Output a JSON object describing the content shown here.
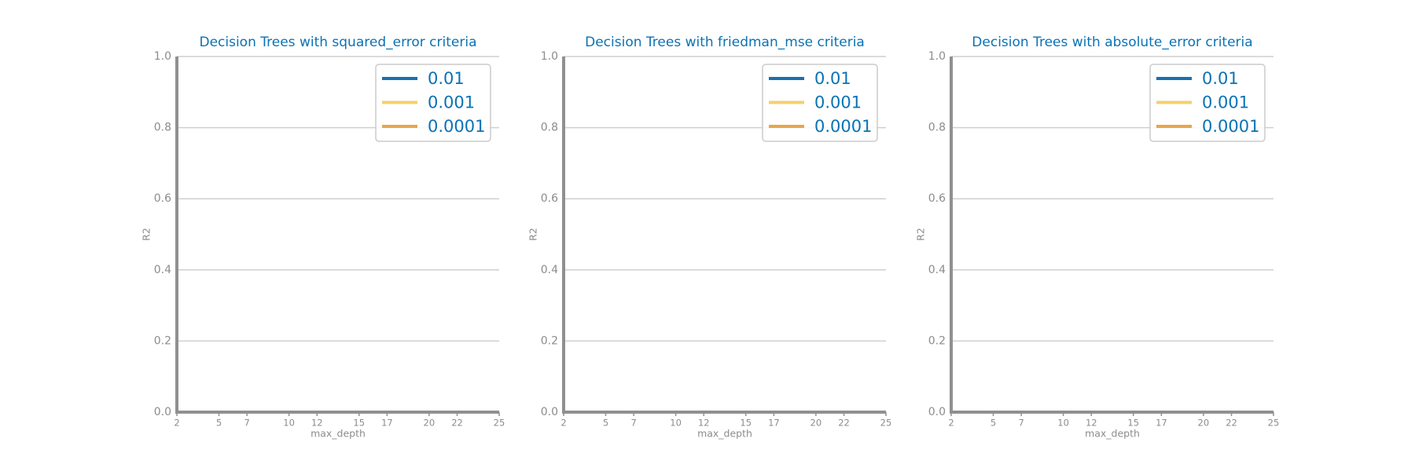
{
  "chart_data": [
    {
      "type": "line",
      "title": "Decision Trees with squared_error criteria",
      "xlabel": "max_depth",
      "ylabel": "R2",
      "x": [
        2,
        5,
        7,
        10,
        12,
        15,
        17,
        20,
        22,
        25
      ],
      "series": [
        {
          "name": "0.01",
          "color": "#1a6faf",
          "values": [
            null,
            null,
            null,
            null,
            null,
            null,
            null,
            null,
            null,
            null
          ]
        },
        {
          "name": "0.001",
          "color": "#f4cf6e",
          "values": [
            null,
            null,
            null,
            null,
            null,
            null,
            null,
            null,
            null,
            null
          ]
        },
        {
          "name": "0.0001",
          "color": "#e8a54b",
          "values": [
            null,
            null,
            null,
            null,
            null,
            null,
            null,
            null,
            null,
            null
          ]
        }
      ],
      "xlim": [
        2,
        25
      ],
      "xticks": [
        2,
        5,
        7,
        10,
        12,
        15,
        17,
        20,
        22,
        25
      ],
      "ylim": [
        0,
        1
      ],
      "yticks": [
        {
          "value": 0,
          "label": "0.0"
        },
        0.2,
        0.4,
        0.6,
        0.8,
        {
          "value": 1,
          "label": "1.0"
        }
      ],
      "grid": true,
      "legend": "upper right"
    },
    {
      "type": "line",
      "title": "Decision Trees with friedman_mse criteria",
      "xlabel": "max_depth",
      "ylabel": "R2",
      "x": [
        2,
        5,
        7,
        10,
        12,
        15,
        17,
        20,
        22,
        25
      ],
      "series": [
        {
          "name": "0.01",
          "color": "#1a6faf",
          "values": [
            null,
            null,
            null,
            null,
            null,
            null,
            null,
            null,
            null,
            null
          ]
        },
        {
          "name": "0.001",
          "color": "#f4cf6e",
          "values": [
            null,
            null,
            null,
            null,
            null,
            null,
            null,
            null,
            null,
            null
          ]
        },
        {
          "name": "0.0001",
          "color": "#e8a54b",
          "values": [
            null,
            null,
            null,
            null,
            null,
            null,
            null,
            null,
            null,
            null
          ]
        }
      ],
      "xlim": [
        2,
        25
      ],
      "xticks": [
        2,
        5,
        7,
        10,
        12,
        15,
        17,
        20,
        22,
        25
      ],
      "ylim": [
        0,
        1
      ],
      "yticks": [
        {
          "value": 0,
          "label": "0.0"
        },
        0.2,
        0.4,
        0.6,
        0.8,
        {
          "value": 1,
          "label": "1.0"
        }
      ],
      "grid": true,
      "legend": "upper right"
    },
    {
      "type": "line",
      "title": "Decision Trees with absolute_error criteria",
      "xlabel": "max_depth",
      "ylabel": "R2",
      "x": [
        2,
        5,
        7,
        10,
        12,
        15,
        17,
        20,
        22,
        25
      ],
      "series": [
        {
          "name": "0.01",
          "color": "#1a6faf",
          "values": [
            null,
            null,
            null,
            null,
            null,
            null,
            null,
            null,
            null,
            null
          ]
        },
        {
          "name": "0.001",
          "color": "#f4cf6e",
          "values": [
            null,
            null,
            null,
            null,
            null,
            null,
            null,
            null,
            null,
            null
          ]
        },
        {
          "name": "0.0001",
          "color": "#e8a54b",
          "values": [
            null,
            null,
            null,
            null,
            null,
            null,
            null,
            null,
            null,
            null
          ]
        }
      ],
      "xlim": [
        2,
        25
      ],
      "xticks": [
        2,
        5,
        7,
        10,
        12,
        15,
        17,
        20,
        22,
        25
      ],
      "ylim": [
        0,
        1
      ],
      "yticks": [
        {
          "value": 0,
          "label": "0.0"
        },
        0.2,
        0.4,
        0.6,
        0.8,
        {
          "value": 1,
          "label": "1.0"
        }
      ],
      "grid": true,
      "legend": "upper right"
    }
  ]
}
